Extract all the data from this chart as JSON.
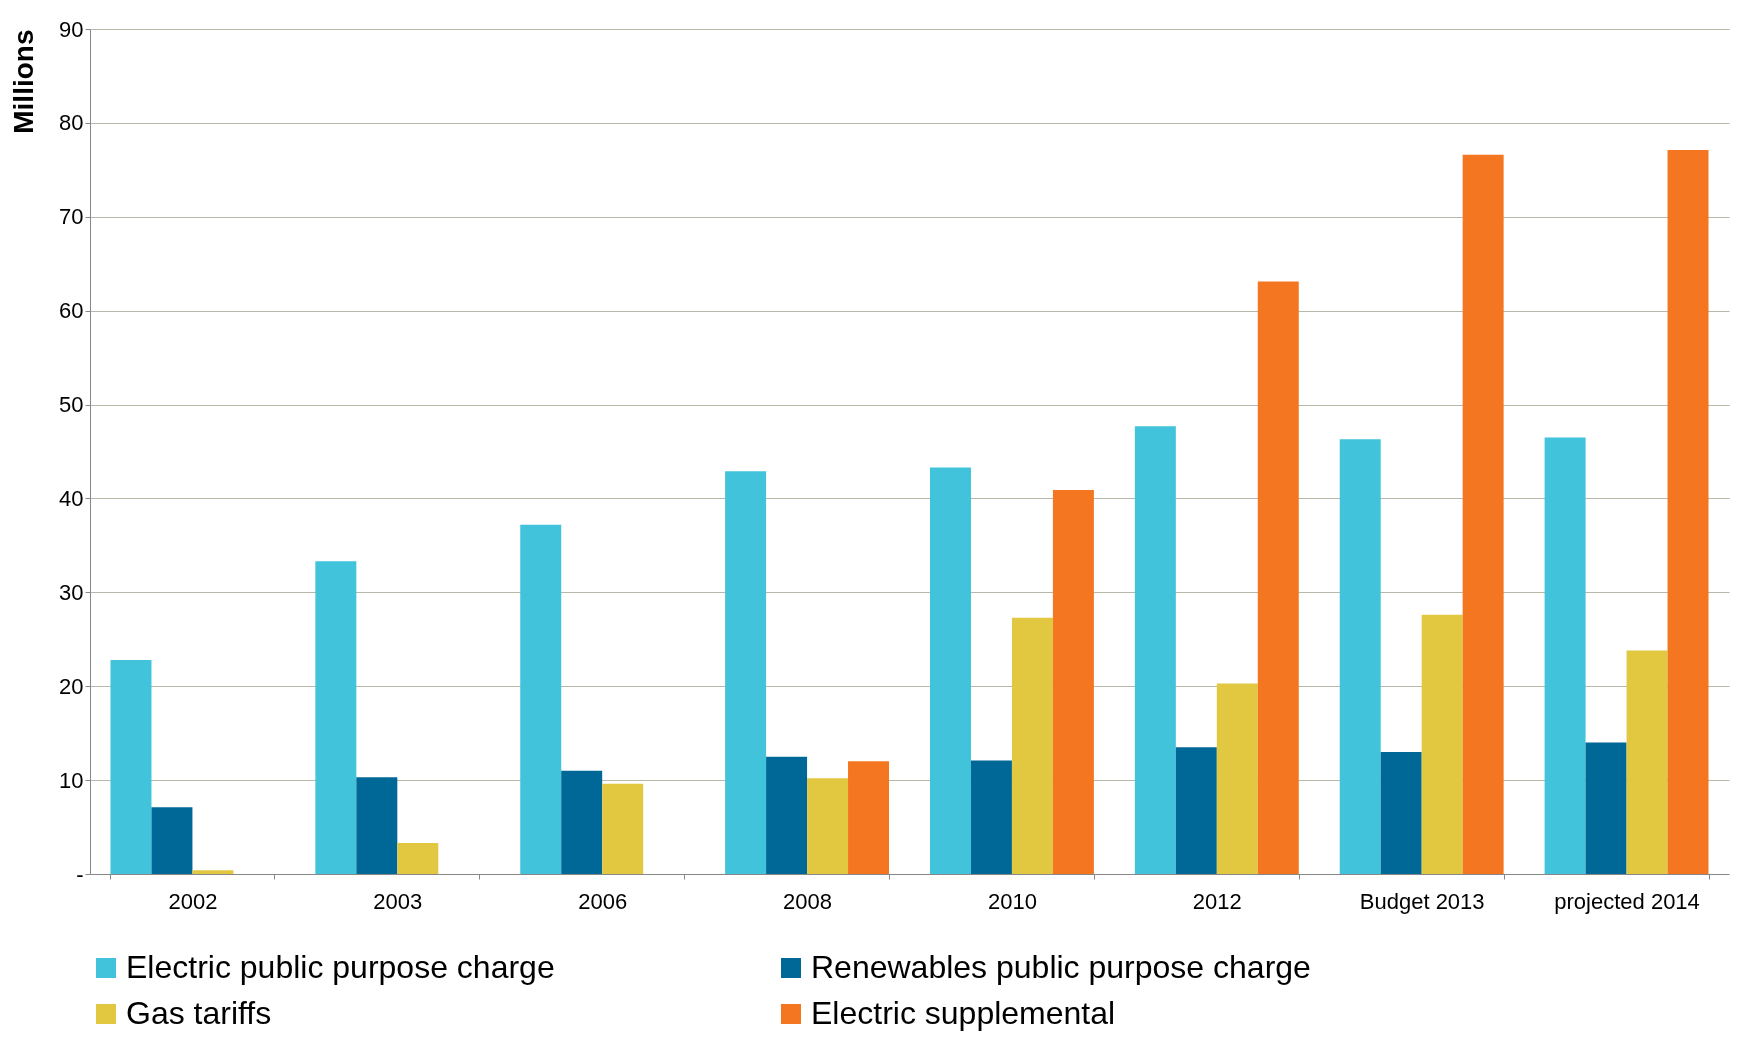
{
  "chart_data": {
    "type": "bar",
    "ylabel": "Millions",
    "categories": [
      "2002",
      "2003",
      "2006",
      "2008",
      "2010",
      "2012",
      "Budget 2013",
      "projected 2014"
    ],
    "series": [
      {
        "name": "Electric public purpose charge",
        "color": "#41c3dc",
        "values": [
          22.8,
          33.3,
          37.2,
          42.9,
          43.3,
          47.7,
          46.3,
          46.5
        ]
      },
      {
        "name": "Renewables public purpose charge",
        "color": "#006896",
        "values": [
          7.1,
          10.3,
          11.0,
          12.5,
          12.1,
          13.5,
          13.0,
          14.0
        ]
      },
      {
        "name": "Gas tariffs",
        "color": "#e2c840",
        "values": [
          0.4,
          3.3,
          9.6,
          10.2,
          27.3,
          20.3,
          27.6,
          23.8
        ]
      },
      {
        "name": "Electric supplemental",
        "color": "#f47621",
        "values": [
          null,
          null,
          null,
          12.0,
          40.9,
          63.1,
          76.6,
          77.1
        ]
      }
    ],
    "ylim": [
      0,
      90
    ],
    "yticks": [
      {
        "value": 0,
        "label": "-"
      },
      10,
      20,
      30,
      40,
      50,
      60,
      70,
      80,
      90
    ],
    "grid": "y",
    "legend": "bottom"
  }
}
